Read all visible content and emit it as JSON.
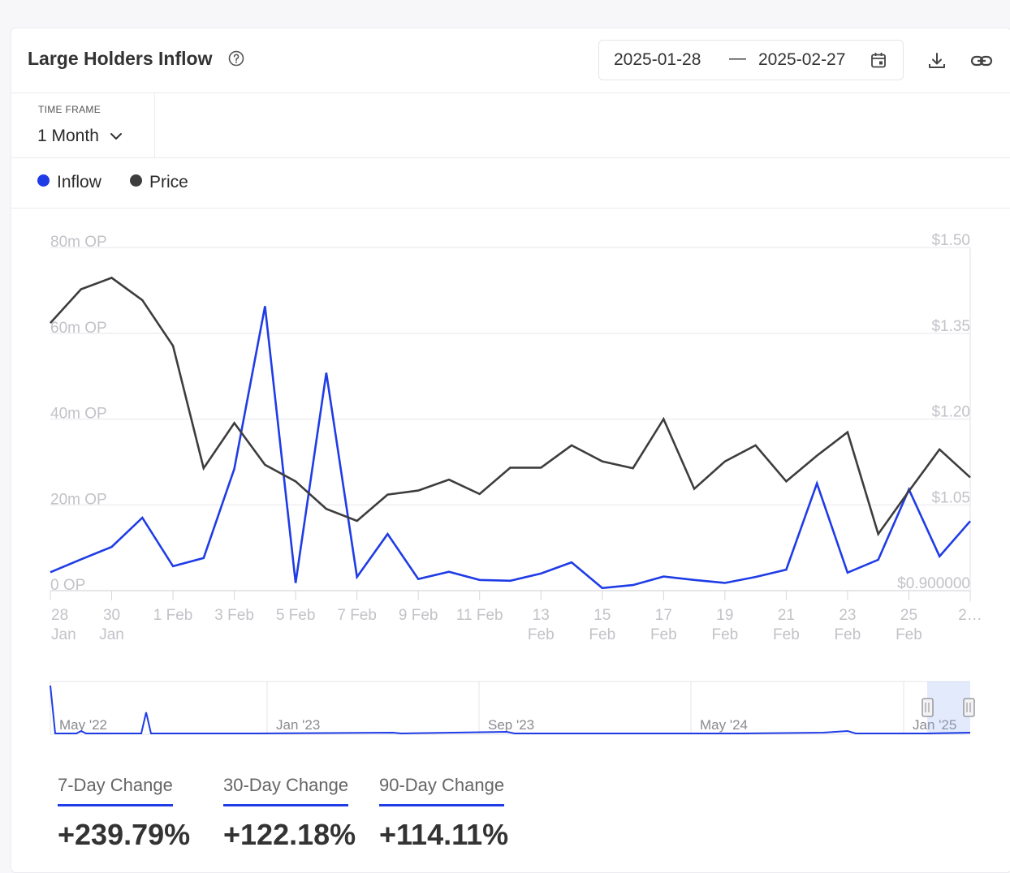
{
  "header": {
    "title": "Large Holders Inflow",
    "date_from": "2025-01-28",
    "date_sep": "—",
    "date_to": "2025-02-27"
  },
  "timeframe": {
    "label": "TIME FRAME",
    "value": "1 Month"
  },
  "legend": [
    {
      "name": "Inflow",
      "color": "#1f3ce6"
    },
    {
      "name": "Price",
      "color": "#3d3d3d"
    }
  ],
  "chart_data": {
    "type": "line",
    "x": [
      "28 Jan",
      "29 Jan",
      "30 Jan",
      "31 Jan",
      "1 Feb",
      "2 Feb",
      "3 Feb",
      "4 Feb",
      "5 Feb",
      "6 Feb",
      "7 Feb",
      "8 Feb",
      "9 Feb",
      "10 Feb",
      "11 Feb",
      "12 Feb",
      "13 Feb",
      "14 Feb",
      "15 Feb",
      "16 Feb",
      "17 Feb",
      "18 Feb",
      "19 Feb",
      "20 Feb",
      "21 Feb",
      "22 Feb",
      "23 Feb",
      "24 Feb",
      "25 Feb",
      "26 Feb",
      "27 Feb"
    ],
    "x_tick_labels": [
      [
        "28",
        "Jan"
      ],
      [
        "30",
        "Jan"
      ],
      [
        "1 Feb"
      ],
      [
        "3 Feb"
      ],
      [
        "5 Feb"
      ],
      [
        "7 Feb"
      ],
      [
        "9 Feb"
      ],
      [
        "11 Feb"
      ],
      [
        "13",
        "Feb"
      ],
      [
        "15",
        "Feb"
      ],
      [
        "17",
        "Feb"
      ],
      [
        "19",
        "Feb"
      ],
      [
        "21",
        "Feb"
      ],
      [
        "23",
        "Feb"
      ],
      [
        "25",
        "Feb"
      ],
      [
        "2…"
      ]
    ],
    "y_left": {
      "ticks": [
        "80m OP",
        "60m OP",
        "40m OP",
        "20m OP",
        "0 OP"
      ],
      "min": 0,
      "max": 80
    },
    "y_right": {
      "ticks": [
        "$1.50",
        "$1.35",
        "$1.20",
        "$1.05",
        "$0.900000"
      ],
      "min": 0.9,
      "max": 1.5
    },
    "series": [
      {
        "name": "Inflow",
        "axis": "left",
        "color": "#1f3ce6",
        "values": [
          4.3,
          7.3,
          10.2,
          17.0,
          5.7,
          7.6,
          28.4,
          66.3,
          1.8,
          50.8,
          3.2,
          13.2,
          2.7,
          4.4,
          2.5,
          2.3,
          4.0,
          6.6,
          0.6,
          1.3,
          3.3,
          2.5,
          1.8,
          3.2,
          4.9,
          25.0,
          4.2,
          7.2,
          23.6,
          8.0,
          16.2
        ]
      },
      {
        "name": "Price",
        "axis": "right",
        "color": "#3d3d3d",
        "values": [
          1.368,
          1.427,
          1.447,
          1.408,
          1.328,
          1.114,
          1.193,
          1.12,
          1.091,
          1.043,
          1.022,
          1.068,
          1.075,
          1.094,
          1.069,
          1.115,
          1.115,
          1.154,
          1.126,
          1.114,
          1.2,
          1.078,
          1.126,
          1.154,
          1.091,
          1.136,
          1.177,
          0.999,
          1.074,
          1.147,
          1.098
        ]
      }
    ],
    "grid": true,
    "legend_position": "top-left"
  },
  "navigator": {
    "labels": [
      "May '22",
      "Jan '23",
      "Sep '23",
      "May '24",
      "Jan '25"
    ]
  },
  "changes": [
    {
      "label": "7-Day Change",
      "value": "+239.79%"
    },
    {
      "label": "30-Day Change",
      "value": "+122.18%"
    },
    {
      "label": "90-Day Change",
      "value": "+114.11%"
    }
  ]
}
